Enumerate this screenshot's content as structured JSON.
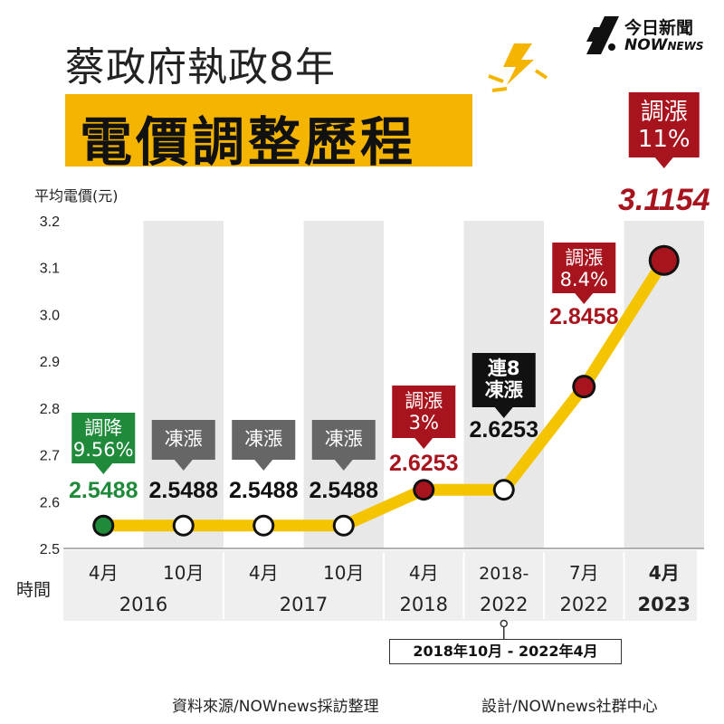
{
  "header": {
    "title": "蔡政府執政8年",
    "subtitle": "電價調整歷程",
    "logo_top": "今日新聞",
    "logo_bottom_main": "NOW",
    "logo_bottom_small": "NEWS"
  },
  "footer": {
    "source": "資料來源/NOWnews採訪整理",
    "design": "設計/NOWnews社群中心"
  },
  "colors": {
    "line": "#f5c400",
    "band": "#f4b400",
    "shade": "#e8e8e8",
    "red": "#a8141d",
    "green": "#1f8a3a",
    "gray_box": "#666666",
    "black_box": "#111111"
  },
  "chart_data": {
    "type": "line",
    "ylabel": "平均電價(元)",
    "xlabel": "時間",
    "ylim": [
      2.5,
      3.2
    ],
    "yticks": [
      "2.5",
      "2.6",
      "2.7",
      "2.8",
      "2.9",
      "3.0",
      "3.1",
      "3.2"
    ],
    "grid": false,
    "categories": [
      "4月",
      "10月",
      "4月",
      "10月",
      "4月",
      "2018-2022",
      "7月",
      "4月"
    ],
    "years": [
      {
        "label": "2016",
        "span": [
          0,
          1
        ]
      },
      {
        "label": "2017",
        "span": [
          2,
          3
        ]
      },
      {
        "label": "2018",
        "span": [
          4,
          4
        ]
      },
      {
        "label": "2022",
        "span": [
          5,
          5
        ]
      },
      {
        "label": "2022",
        "span": [
          6,
          6
        ]
      },
      {
        "label": "2023",
        "span": [
          7,
          7
        ]
      }
    ],
    "range_note": "2018年10月 - 2022年4月",
    "series": [
      {
        "values": [
          2.5488,
          2.5488,
          2.5488,
          2.5488,
          2.6253,
          2.6253,
          2.8458,
          3.1154
        ]
      }
    ],
    "points": [
      {
        "value_label": "2.5488",
        "color": "#1f8a3a",
        "callout": [
          "調降",
          "9.56%"
        ],
        "callout_style": "green"
      },
      {
        "value_label": "2.5488",
        "color": "#ffffff",
        "callout": [
          "凍漲"
        ],
        "callout_style": "gray"
      },
      {
        "value_label": "2.5488",
        "color": "#ffffff",
        "callout": [
          "凍漲"
        ],
        "callout_style": "gray"
      },
      {
        "value_label": "2.5488",
        "color": "#ffffff",
        "callout": [
          "凍漲"
        ],
        "callout_style": "gray"
      },
      {
        "value_label": "2.6253",
        "color": "#a8141d",
        "callout": [
          "調漲",
          "3%"
        ],
        "callout_style": "red"
      },
      {
        "value_label": "2.6253",
        "color": "#ffffff",
        "callout": [
          "連8",
          "凍漲"
        ],
        "callout_style": "black"
      },
      {
        "value_label": "2.8458",
        "color": "#a8141d",
        "callout": [
          "調漲",
          "8.4%"
        ],
        "callout_style": "red"
      },
      {
        "value_label": "3.1154",
        "color": "#a8141d",
        "callout": [
          "調漲",
          "11%"
        ],
        "callout_style": "red"
      }
    ]
  }
}
